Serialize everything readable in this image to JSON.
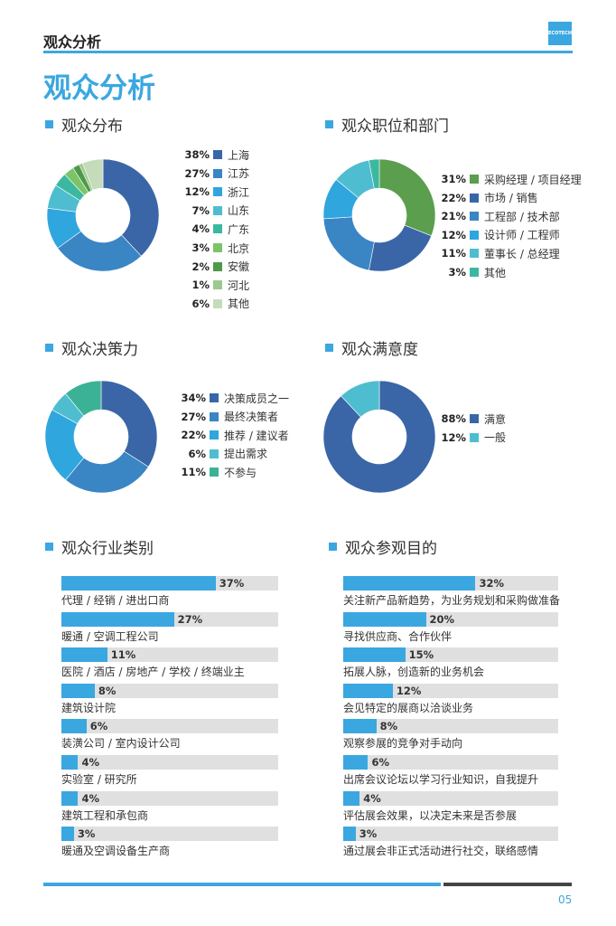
{
  "header": {
    "title": "观众分析",
    "logo_text": "ECOTECH CHINA"
  },
  "main_title": "观众分析",
  "colors": {
    "accent": "#3ba7e0",
    "track": "#e0e0e0"
  },
  "sections": [
    {
      "title": "观众分布",
      "type": "donut",
      "items": [
        {
          "pct": "38%",
          "value": 38,
          "label": "上海",
          "color": "#3a66a7"
        },
        {
          "pct": "27%",
          "value": 27,
          "label": "江苏",
          "color": "#3a85c4"
        },
        {
          "pct": "12%",
          "value": 12,
          "label": "浙江",
          "color": "#2fa6de"
        },
        {
          "pct": "7%",
          "value": 7,
          "label": "山东",
          "color": "#4fbdd0"
        },
        {
          "pct": "4%",
          "value": 4,
          "label": "广东",
          "color": "#3bb8a0"
        },
        {
          "pct": "3%",
          "value": 3,
          "label": "北京",
          "color": "#7cc46a"
        },
        {
          "pct": "2%",
          "value": 2,
          "label": "安徽",
          "color": "#4e9a4a"
        },
        {
          "pct": "1%",
          "value": 1,
          "label": "河北",
          "color": "#9cc98f"
        },
        {
          "pct": "6%",
          "value": 6,
          "label": "其他",
          "color": "#c4dcb9"
        }
      ]
    },
    {
      "title": "观众职位和部门",
      "type": "donut",
      "items": [
        {
          "pct": "31%",
          "value": 31,
          "label": "采购经理 / 项目经理",
          "color": "#5a9e4e"
        },
        {
          "pct": "22%",
          "value": 22,
          "label": "市场 / 销售",
          "color": "#3a66a7"
        },
        {
          "pct": "21%",
          "value": 21,
          "label": "工程部 / 技术部",
          "color": "#3a85c4"
        },
        {
          "pct": "12%",
          "value": 12,
          "label": "设计师 / 工程师",
          "color": "#2fa6de"
        },
        {
          "pct": "11%",
          "value": 11,
          "label": "董事长 / 总经理",
          "color": "#4fbdd0"
        },
        {
          "pct": "3%",
          "value": 3,
          "label": "其他",
          "color": "#3bb8a0"
        }
      ]
    },
    {
      "title": "观众决策力",
      "type": "donut",
      "items": [
        {
          "pct": "34%",
          "value": 34,
          "label": "决策成员之一",
          "color": "#3a66a7"
        },
        {
          "pct": "27%",
          "value": 27,
          "label": "最终决策者",
          "color": "#3a85c4"
        },
        {
          "pct": "22%",
          "value": 22,
          "label": "推荐 / 建议者",
          "color": "#2fa6de"
        },
        {
          "pct": "6%",
          "value": 6,
          "label": "提出需求",
          "color": "#4fbdd0"
        },
        {
          "pct": "11%",
          "value": 11,
          "label": "不参与",
          "color": "#3bb296"
        }
      ]
    },
    {
      "title": "观众满意度",
      "type": "donut",
      "items": [
        {
          "pct": "88%",
          "value": 88,
          "label": "满意",
          "color": "#3a66a7"
        },
        {
          "pct": "12%",
          "value": 12,
          "label": "一般",
          "color": "#4fbdd0"
        }
      ]
    },
    {
      "title": "观众行业类别",
      "type": "bar",
      "items": [
        {
          "pct": "37%",
          "value": 37,
          "label": "代理 / 经销 / 进出口商"
        },
        {
          "pct": "27%",
          "value": 27,
          "label": "暖通 / 空调工程公司"
        },
        {
          "pct": "11%",
          "value": 11,
          "label": "医院 / 酒店 / 房地产 / 学校 / 终端业主"
        },
        {
          "pct": "8%",
          "value": 8,
          "label": "建筑设计院"
        },
        {
          "pct": "6%",
          "value": 6,
          "label": "装潢公司 / 室内设计公司"
        },
        {
          "pct": "4%",
          "value": 4,
          "label": "实验室 / 研究所"
        },
        {
          "pct": "4%",
          "value": 4,
          "label": "建筑工程和承包商"
        },
        {
          "pct": "3%",
          "value": 3,
          "label": "暖通及空调设备生产商"
        }
      ]
    },
    {
      "title": "观众参观目的",
      "type": "bar",
      "items": [
        {
          "pct": "32%",
          "value": 32,
          "label": "关注新产品新趋势，为业务规划和采购做准备"
        },
        {
          "pct": "20%",
          "value": 20,
          "label": "寻找供应商、合作伙伴"
        },
        {
          "pct": "15%",
          "value": 15,
          "label": "拓展人脉，创造新的业务机会"
        },
        {
          "pct": "12%",
          "value": 12,
          "label": "会见特定的展商以洽谈业务"
        },
        {
          "pct": "8%",
          "value": 8,
          "label": "观察参展的竞争对手动向"
        },
        {
          "pct": "6%",
          "value": 6,
          "label": "出席会议论坛以学习行业知识，自我提升"
        },
        {
          "pct": "4%",
          "value": 4,
          "label": "评估展会效果，以决定未来是否参展"
        },
        {
          "pct": "3%",
          "value": 3,
          "label": "通过展会非正式活动进行社交，联络感情"
        }
      ]
    }
  ],
  "footer": {
    "page_number": "05"
  }
}
